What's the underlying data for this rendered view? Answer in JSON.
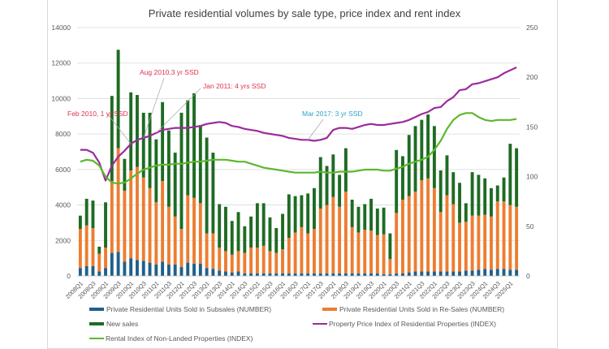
{
  "chart_data": {
    "type": "bar",
    "title": "Private residential volumes by sale type, price index and rent index",
    "xlabel": "",
    "ylabel": "",
    "ylim": [
      0,
      14000
    ],
    "y2lim": [
      0,
      250
    ],
    "yticks": [
      "0",
      "2000",
      "4000",
      "6000",
      "8000",
      "10000",
      "12000",
      "14000"
    ],
    "y2ticks": [
      "0",
      "50",
      "100",
      "150",
      "200",
      "250"
    ],
    "grid": true,
    "legend_position": "bottom",
    "categories": [
      "2008Q1",
      "2008Q2",
      "2008Q3",
      "2008Q4",
      "2009Q1",
      "2009Q2",
      "2009Q3",
      "2009Q4",
      "2010Q1",
      "2010Q2",
      "2010Q3",
      "2010Q4",
      "2011Q1",
      "2011Q2",
      "2011Q3",
      "2011Q4",
      "2012Q1",
      "2012Q2",
      "2012Q3",
      "2012Q4",
      "2013Q1",
      "2013Q2",
      "2013Q3",
      "2013Q4",
      "2014Q1",
      "2014Q2",
      "2014Q3",
      "2014Q4",
      "2015Q1",
      "2015Q2",
      "2015Q3",
      "2015Q4",
      "2016Q1",
      "2016Q2",
      "2016Q3",
      "2016Q4",
      "2017Q1",
      "2017Q2",
      "2017Q3",
      "2017Q4",
      "2018Q1",
      "2018Q2",
      "2018Q3",
      "2018Q4",
      "2019Q1",
      "2019Q2",
      "2019Q3",
      "2019Q4",
      "2020Q1",
      "2020Q2",
      "2020Q3",
      "2020Q4",
      "2021Q1",
      "2021Q2",
      "2021Q3",
      "2021Q4",
      "2022Q1",
      "2022Q2",
      "2022Q3",
      "2022Q4",
      "2023Q1",
      "2023Q2",
      "2023Q3",
      "2023Q4",
      "2024Q1",
      "2024Q2",
      "2024Q3",
      "2024Q4",
      "2025Q1",
      "2025Q2"
    ],
    "xtick_labels_shown_every": 2,
    "series": [
      {
        "name": "Private Residential Units Sold in Subsales (NUMBER)",
        "type": "stacked-bar",
        "color": "#1f5f8b",
        "values": [
          450,
          550,
          550,
          250,
          450,
          1300,
          1350,
          800,
          1000,
          900,
          850,
          750,
          650,
          800,
          650,
          650,
          500,
          750,
          700,
          700,
          450,
          400,
          300,
          250,
          200,
          250,
          150,
          150,
          150,
          150,
          150,
          150,
          150,
          150,
          150,
          150,
          150,
          150,
          150,
          150,
          150,
          150,
          150,
          150,
          150,
          150,
          150,
          150,
          100,
          100,
          150,
          150,
          200,
          250,
          250,
          250,
          250,
          250,
          250,
          250,
          250,
          300,
          300,
          350,
          400,
          350,
          400,
          400,
          350,
          350
        ]
      },
      {
        "name": "Private Residential Units Sold in Re-Sales (NUMBER)",
        "type": "stacked-bar",
        "color": "#ed7d31",
        "values": [
          2200,
          2300,
          2150,
          1000,
          1150,
          4050,
          5850,
          4000,
          4950,
          5250,
          4700,
          4200,
          3500,
          4550,
          3250,
          2700,
          2150,
          3800,
          3700,
          3400,
          1950,
          2000,
          1300,
          1150,
          1000,
          1150,
          1150,
          1450,
          1450,
          1550,
          1250,
          1150,
          1350,
          2000,
          2300,
          2600,
          2250,
          2500,
          3650,
          3850,
          4300,
          3750,
          4600,
          2600,
          2300,
          2450,
          2400,
          2150,
          2250,
          850,
          3400,
          4150,
          4300,
          4500,
          5150,
          5250,
          4700,
          3350,
          4300,
          3800,
          2750,
          2750,
          3100,
          3050,
          3050,
          3000,
          3800,
          3800,
          3650,
          3550
        ]
      },
      {
        "name": "New sales",
        "type": "stacked-bar",
        "color": "#1e6b24",
        "values": [
          750,
          1500,
          1550,
          400,
          2550,
          4800,
          5550,
          1800,
          4400,
          4050,
          3650,
          4250,
          3550,
          4450,
          4300,
          3600,
          6550,
          5350,
          5900,
          4400,
          5400,
          4550,
          2450,
          2500,
          1900,
          2200,
          1500,
          1750,
          2500,
          2400,
          1900,
          1400,
          2000,
          2450,
          2050,
          1800,
          2250,
          2300,
          2900,
          2200,
          2400,
          1800,
          2450,
          1550,
          1450,
          1450,
          1800,
          1500,
          1500,
          1450,
          3550,
          2450,
          3450,
          3700,
          3400,
          3600,
          3500,
          2350,
          2250,
          1800,
          2250,
          1050,
          2450,
          2300,
          2050,
          1600,
          900,
          1350,
          3450,
          3300
        ]
      },
      {
        "name": "Property Price Index of Residential Properties (INDEX)",
        "type": "line",
        "axis": "secondary",
        "color": "#9c2b9c",
        "values": [
          127,
          127,
          124,
          114,
          96,
          111,
          120,
          126,
          133,
          137,
          139,
          141,
          144,
          147,
          148,
          149,
          149,
          149,
          150,
          151,
          153,
          154,
          155,
          154,
          151,
          150,
          148,
          147,
          146,
          144,
          143,
          142,
          141,
          139,
          138,
          137,
          137,
          136,
          137,
          139,
          147,
          149,
          149,
          148,
          150,
          152,
          153,
          152,
          152,
          153,
          154,
          155,
          157,
          160,
          163,
          165,
          169,
          170,
          176,
          180,
          187,
          188,
          193,
          194,
          196,
          198,
          200,
          204,
          207,
          210
        ]
      },
      {
        "name": "Rental Index of Non-Landed Properties (INDEX)",
        "type": "line",
        "axis": "secondary",
        "color": "#5cb82b",
        "values": [
          115,
          117,
          116,
          111,
          100,
          94,
          93,
          94,
          98,
          103,
          107,
          109,
          111,
          112,
          112,
          113,
          113,
          114,
          115,
          115,
          116,
          117,
          117,
          117,
          116,
          115,
          115,
          113,
          111,
          109,
          108,
          107,
          106,
          105,
          104,
          104,
          104,
          104,
          105,
          104,
          104,
          105,
          105,
          105,
          106,
          107,
          107,
          107,
          106,
          106,
          108,
          110,
          113,
          115,
          117,
          120,
          127,
          136,
          148,
          157,
          162,
          164,
          164,
          160,
          157,
          156,
          157,
          157,
          157,
          158
        ]
      }
    ],
    "annotations": [
      {
        "text": "Feb 2010, 1 yr SSD",
        "at": "2010Q1",
        "series": "Property Price Index of Residential Properties (INDEX)",
        "color": "#e0304e"
      },
      {
        "text": "Aug 2010,3 yr SSD",
        "at": "2010Q3",
        "series": "Property Price Index of Residential Properties (INDEX)",
        "color": "#e0304e"
      },
      {
        "text": "Jan 2011: 4 yrs SSD",
        "at": "2011Q1",
        "series": "Property Price Index of Residential Properties (INDEX)",
        "color": "#e0304e"
      },
      {
        "text": "Mar 2017: 3 yr SSD",
        "at": "2017Q1",
        "series": "Property Price Index of Residential Properties (INDEX)",
        "color": "#2ea3c9"
      }
    ]
  },
  "legend": {
    "subsales": "Private Residential Units Sold in Subsales (NUMBER)",
    "resales": "Private Residential Units Sold in Re-Sales (NUMBER)",
    "newsales": "New sales",
    "ppi": "Property Price Index of Residential Properties (INDEX)",
    "rental": "Rental Index of Non-Landed Properties (INDEX)"
  }
}
